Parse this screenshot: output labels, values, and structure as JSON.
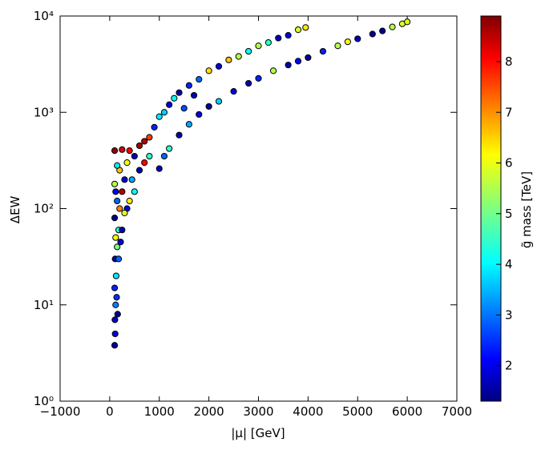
{
  "chart_data": {
    "type": "scatter",
    "x_label": "|μ| [GeV]",
    "y_label": "ΔEW",
    "xlim": [
      -1000,
      7000
    ],
    "xticks": [
      {
        "value": -1000,
        "label": "−1000"
      },
      0,
      1000,
      2000,
      3000,
      4000,
      5000,
      6000,
      7000
    ],
    "ylim": [
      1,
      10000
    ],
    "log_y": true,
    "yticks": [
      {
        "value": 1,
        "label": "10⁰"
      },
      {
        "value": 10,
        "label": "10¹"
      },
      {
        "value": 100,
        "label": "10²"
      },
      {
        "value": 1000,
        "label": "10³"
      },
      {
        "value": 10000,
        "label": "10⁴"
      }
    ],
    "edgecolor": "#000000",
    "x": [
      100,
      110,
      105,
      120,
      100,
      130,
      110,
      150,
      120,
      180,
      100,
      200,
      150,
      120,
      250,
      100,
      300,
      200,
      150,
      100,
      250,
      400,
      350,
      500,
      600,
      700,
      800,
      450,
      600,
      700,
      800,
      900,
      1000,
      350,
      500,
      250,
      180,
      140,
      160,
      300,
      400,
      220,
      1000,
      1100,
      1200,
      1400,
      1600,
      1800,
      2000,
      2200,
      2500,
      2800,
      3000,
      3300,
      3600,
      3800,
      4000,
      4300,
      4600,
      4800,
      5000,
      5300,
      5500,
      5700,
      5900,
      6000,
      1100,
      1200,
      1300,
      1400,
      1600,
      1800,
      2000,
      2200,
      2400,
      2600,
      2800,
      3000,
      3200,
      3400,
      3600,
      3800,
      3950,
      1500,
      1700
    ],
    "values": [
      3.8,
      5,
      7,
      10,
      15,
      20,
      30,
      40,
      50,
      60,
      80,
      100,
      120,
      150,
      150,
      180,
      200,
      250,
      280,
      400,
      410,
      400,
      300,
      350,
      450,
      500,
      550,
      200,
      250,
      300,
      350,
      700,
      900,
      100,
      150,
      60,
      30,
      12,
      8,
      90,
      120,
      45,
      260,
      350,
      420,
      580,
      750,
      950,
      1150,
      1300,
      1650,
      2000,
      2250,
      2700,
      3100,
      3400,
      3700,
      4300,
      4900,
      5400,
      5800,
      6500,
      7000,
      7700,
      8300,
      8700,
      1000,
      1200,
      1400,
      1600,
      1900,
      2200,
      2700,
      3000,
      3500,
      3800,
      4300,
      4900,
      5300,
      5900,
      6300,
      7200,
      7600,
      1100,
      1500
    ],
    "c": [
      1.5,
      2,
      1.8,
      3.2,
      2.5,
      4,
      1.6,
      5,
      6,
      4.5,
      1.4,
      7,
      3,
      2.2,
      8.5,
      5.5,
      2,
      6.5,
      4,
      8.8,
      8.2,
      8,
      6,
      1.8,
      8.6,
      8.5,
      7.5,
      3.5,
      1.6,
      8,
      4.5,
      2.5,
      4,
      2,
      4.2,
      1.7,
      3,
      2.6,
      1.5,
      5.8,
      6.2,
      1.9,
      1.8,
      3,
      4.5,
      1.6,
      3.5,
      2,
      1.5,
      3.8,
      2,
      1.7,
      2.5,
      5.5,
      1.6,
      2.2,
      1.5,
      2.5,
      5.5,
      6,
      1.8,
      1.5,
      1.4,
      5.5,
      5.8,
      5.8,
      3.8,
      2,
      4.2,
      1.6,
      2.5,
      3,
      6.3,
      2,
      6.5,
      5.5,
      4.2,
      5.5,
      4.5,
      1.8,
      2,
      5.8,
      6.2,
      2.8,
      1.7
    ],
    "colorbar": {
      "label": "g̃ mass [TeV]",
      "colormap": "jet",
      "lim": [
        1.3,
        8.9
      ],
      "ticks": [
        2,
        3,
        4,
        5,
        6,
        7,
        8
      ]
    }
  }
}
